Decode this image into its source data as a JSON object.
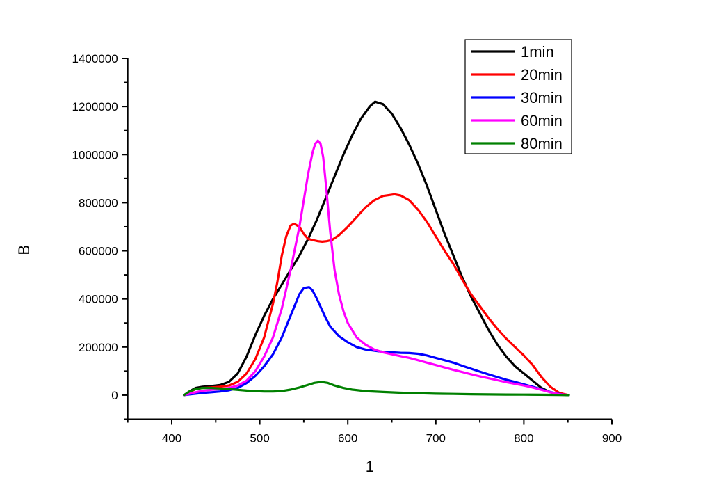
{
  "chart_data": {
    "type": "line",
    "title": "",
    "xlabel": "1",
    "ylabel": "B",
    "xlim": [
      350,
      900
    ],
    "ylim": [
      -100000,
      1400000
    ],
    "xticks": [
      400,
      500,
      600,
      700,
      800,
      900
    ],
    "xtick_labels": [
      "400",
      "500",
      "600",
      "700",
      "800",
      "900"
    ],
    "xminor_ticks": [
      350,
      450,
      550,
      650,
      750,
      850
    ],
    "yticks": [
      0,
      200000,
      400000,
      600000,
      800000,
      1000000,
      1200000,
      1400000
    ],
    "ytick_labels": [
      "0",
      "200000",
      "400000",
      "600000",
      "800000",
      "1000000",
      "1200000",
      "1400000"
    ],
    "yminor_ticks": [
      -100000,
      100000,
      300000,
      500000,
      700000,
      900000,
      1100000,
      1300000
    ],
    "grid": false,
    "legend_position": "top-right",
    "series": [
      {
        "name": "1min",
        "color": "#000000",
        "x": [
          414,
          420,
          427,
          435,
          445,
          455,
          465,
          475,
          485,
          495,
          505,
          515,
          525,
          535,
          545,
          555,
          565,
          575,
          585,
          595,
          605,
          615,
          625,
          631,
          640,
          650,
          660,
          670,
          680,
          690,
          700,
          710,
          720,
          730,
          740,
          750,
          760,
          770,
          780,
          790,
          800,
          810,
          820,
          830,
          840,
          845,
          851
        ],
        "y": [
          0,
          15000,
          30000,
          35000,
          38000,
          42000,
          55000,
          90000,
          160000,
          250000,
          330000,
          400000,
          460000,
          520000,
          580000,
          650000,
          730000,
          820000,
          910000,
          1000000,
          1080000,
          1150000,
          1200000,
          1220000,
          1210000,
          1170000,
          1110000,
          1040000,
          960000,
          870000,
          770000,
          670000,
          580000,
          490000,
          410000,
          340000,
          270000,
          210000,
          160000,
          120000,
          90000,
          60000,
          30000,
          12000,
          4000,
          2000,
          0
        ]
      },
      {
        "name": "20min",
        "color": "#ff0000",
        "x": [
          414,
          420,
          427,
          435,
          445,
          455,
          465,
          475,
          485,
          495,
          505,
          515,
          520,
          525,
          530,
          535,
          539,
          545,
          550,
          555,
          560,
          566,
          571,
          576,
          582,
          590,
          600,
          610,
          620,
          630,
          640,
          653,
          660,
          670,
          680,
          690,
          700,
          710,
          720,
          730,
          740,
          750,
          760,
          770,
          780,
          790,
          800,
          810,
          820,
          830,
          840,
          845,
          851
        ],
        "y": [
          0,
          12000,
          25000,
          30000,
          32000,
          35000,
          40000,
          55000,
          90000,
          150000,
          240000,
          380000,
          470000,
          580000,
          660000,
          705000,
          713000,
          700000,
          670000,
          650000,
          645000,
          640000,
          638000,
          640000,
          645000,
          665000,
          700000,
          740000,
          780000,
          810000,
          828000,
          835000,
          830000,
          810000,
          770000,
          720000,
          660000,
          600000,
          545000,
          480000,
          420000,
          370000,
          320000,
          275000,
          235000,
          200000,
          165000,
          125000,
          75000,
          35000,
          10000,
          5000,
          0
        ]
      },
      {
        "name": "30min",
        "color": "#0000ff",
        "x": [
          414,
          420,
          427,
          435,
          445,
          455,
          465,
          475,
          485,
          495,
          505,
          515,
          525,
          535,
          545,
          550,
          556,
          560,
          565,
          570,
          575,
          580,
          590,
          600,
          610,
          620,
          630,
          640,
          650,
          660,
          670,
          680,
          690,
          700,
          710,
          720,
          730,
          740,
          750,
          760,
          770,
          780,
          790,
          800,
          810,
          820,
          830,
          840,
          845,
          851
        ],
        "y": [
          0,
          3000,
          6000,
          9000,
          12000,
          15000,
          20000,
          30000,
          50000,
          80000,
          120000,
          170000,
          240000,
          330000,
          420000,
          445000,
          449000,
          435000,
          400000,
          360000,
          320000,
          285000,
          245000,
          220000,
          200000,
          190000,
          185000,
          180000,
          178000,
          176000,
          175000,
          172000,
          165000,
          155000,
          145000,
          135000,
          122000,
          110000,
          98000,
          86000,
          75000,
          64000,
          55000,
          45000,
          35000,
          24000,
          13000,
          5000,
          2000,
          0
        ]
      },
      {
        "name": "60min",
        "color": "#ff00ff",
        "x": [
          414,
          420,
          427,
          435,
          445,
          455,
          465,
          475,
          485,
          495,
          505,
          515,
          525,
          535,
          545,
          550,
          555,
          560,
          563,
          566,
          569,
          572,
          575,
          580,
          585,
          590,
          595,
          600,
          610,
          620,
          630,
          640,
          650,
          660,
          670,
          680,
          690,
          700,
          710,
          720,
          730,
          740,
          750,
          760,
          770,
          780,
          790,
          800,
          810,
          820,
          830,
          840,
          845,
          851
        ],
        "y": [
          0,
          6000,
          12000,
          18000,
          22000,
          25000,
          30000,
          40000,
          60000,
          100000,
          160000,
          240000,
          360000,
          520000,
          700000,
          810000,
          920000,
          1010000,
          1045000,
          1058000,
          1045000,
          990000,
          880000,
          680000,
          520000,
          420000,
          350000,
          300000,
          240000,
          210000,
          190000,
          178000,
          170000,
          162000,
          155000,
          145000,
          135000,
          125000,
          115000,
          105000,
          96000,
          87000,
          78000,
          70000,
          62000,
          54000,
          47000,
          40000,
          32000,
          22000,
          12000,
          4000,
          2000,
          0
        ]
      },
      {
        "name": "80min",
        "color": "#008000",
        "x": [
          414,
          420,
          427,
          435,
          445,
          455,
          465,
          475,
          485,
          495,
          505,
          515,
          525,
          535,
          545,
          555,
          562,
          570,
          577,
          585,
          595,
          605,
          620,
          640,
          660,
          680,
          700,
          720,
          740,
          760,
          780,
          800,
          820,
          840,
          851
        ],
        "y": [
          0,
          15000,
          25000,
          30000,
          30000,
          28000,
          25000,
          22000,
          19000,
          17000,
          15000,
          15000,
          17000,
          23000,
          32000,
          43000,
          51000,
          55000,
          51000,
          40000,
          30000,
          23000,
          17000,
          13000,
          10000,
          8000,
          6000,
          5000,
          4000,
          3000,
          2500,
          2000,
          1500,
          1000,
          0
        ]
      }
    ]
  }
}
